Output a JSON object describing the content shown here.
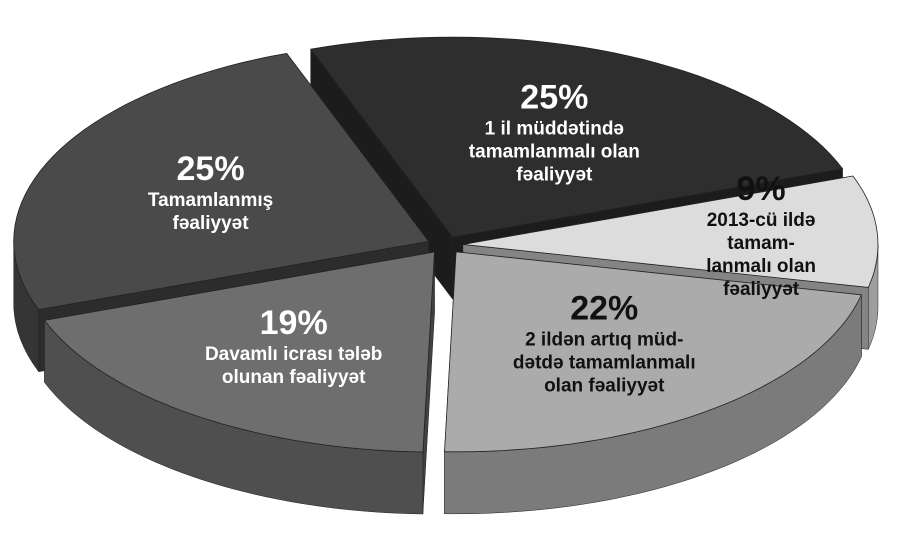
{
  "chart_data": {
    "type": "pie",
    "categories": [
      "1 il müddətində\ntamamlanmalı olan\nfəaliyyət",
      "2013-cü ildə tamam-\nlanmalı olan fəaliyyət",
      "2 ildən artıq müd-\ndətdə tamamlanmalı\nolan fəaliyyət",
      "Davamlı icrası tələb\nolunan fəaliyyət",
      "Tamamlanmış\nfəaliyyət"
    ],
    "values": [
      25,
      9,
      22,
      19,
      25
    ],
    "value_labels": [
      "25%",
      "9%",
      "22%",
      "19%",
      "25%"
    ],
    "colors": [
      "#2e2e2e",
      "#dcdcdc",
      "#ababab",
      "#6e6e6e",
      "#4a4a4a"
    ]
  }
}
